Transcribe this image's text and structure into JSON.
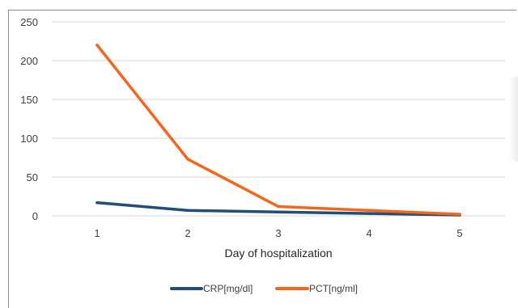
{
  "chart_data": {
    "type": "line",
    "title": "",
    "xlabel": "Day of hospitalization",
    "ylabel": "",
    "categories": [
      "1",
      "2",
      "3",
      "4",
      "5"
    ],
    "ylim": [
      0,
      250
    ],
    "yticks": [
      "0",
      "50",
      "100",
      "150",
      "200",
      "250"
    ],
    "grid": "horizontal",
    "legend_position": "bottom",
    "series": [
      {
        "name": "CRP[mg/dl]",
        "values": [
          17,
          7,
          5,
          3,
          1
        ],
        "color": "#1f4e79"
      },
      {
        "name": "PCT[ng/ml]",
        "values": [
          220,
          73,
          12,
          7,
          2
        ],
        "color": "#f4661b"
      }
    ]
  }
}
